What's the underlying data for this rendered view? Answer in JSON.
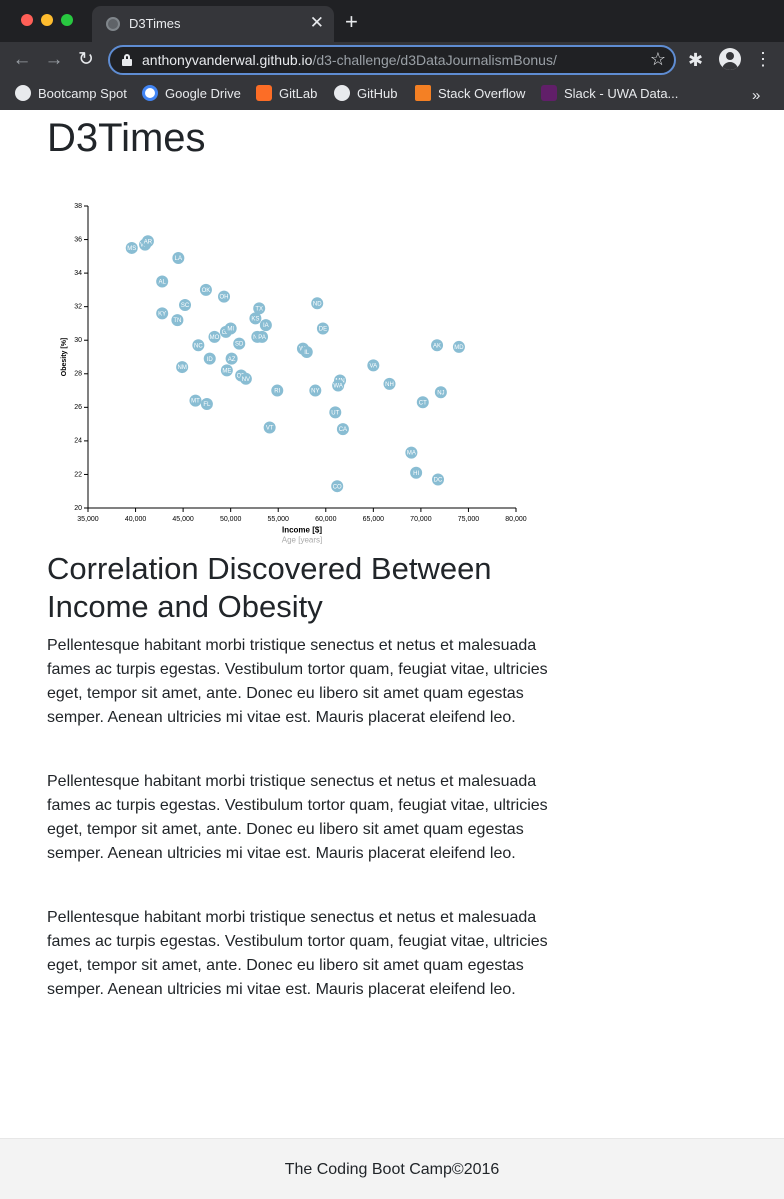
{
  "browser": {
    "tab_title": "D3Times",
    "tab_close": "✕",
    "new_tab": "+",
    "url_domain": "anthonyvanderwal.github.io",
    "url_path": "/d3-challenge/d3DataJournalismBonus/",
    "bookmarks": [
      {
        "label": "Bootcamp Spot",
        "icon": "globe-icon",
        "color": "#e8eaed"
      },
      {
        "label": "Google Drive",
        "icon": "google-icon",
        "color": "#4285f4"
      },
      {
        "label": "GitLab",
        "icon": "gitlab-icon",
        "color": "#fc6d26"
      },
      {
        "label": "GitHub",
        "icon": "github-icon",
        "color": "#e8eaed"
      },
      {
        "label": "Stack Overflow",
        "icon": "stackoverflow-icon",
        "color": "#f48024"
      },
      {
        "label": "Slack - UWA Data...",
        "icon": "slack-icon",
        "color": "#611f69"
      }
    ],
    "more": "»"
  },
  "page": {
    "title": "D3Times",
    "article_heading": "Correlation Discovered Between Income and Obesity",
    "paragraphs": [
      "Pellentesque habitant morbi tristique senectus et netus et malesuada fames ac turpis egestas. Vestibulum tortor quam, feugiat vitae, ultricies eget, tempor sit amet, ante. Donec eu libero sit amet quam egestas semper. Aenean ultricies mi vitae est. Mauris placerat eleifend leo.",
      "Pellentesque habitant morbi tristique senectus et netus et malesuada fames ac turpis egestas. Vestibulum tortor quam, feugiat vitae, ultricies eget, tempor sit amet, ante. Donec eu libero sit amet quam egestas semper. Aenean ultricies mi vitae est. Mauris placerat eleifend leo.",
      "Pellentesque habitant morbi tristique senectus et netus et malesuada fames ac turpis egestas. Vestibulum tortor quam, feugiat vitae, ultricies eget, tempor sit amet, ante. Donec eu libero sit amet quam egestas semper. Aenean ultricies mi vitae est. Mauris placerat eleifend leo."
    ],
    "footer": "The Coding Boot Camp©2016"
  },
  "colors": {
    "marker": "#89bdd3",
    "marker_text": "#ffffff",
    "active_axis_label": "#000000",
    "inactive_axis_label": "#a9a9a9"
  },
  "chart_data": {
    "type": "scatter",
    "xlabel": "Income [$]",
    "xlabel_alt": "Age [years]",
    "ylabel": "Obesity [%]",
    "xlim": [
      35000,
      80000
    ],
    "ylim": [
      20,
      38
    ],
    "x_ticks": [
      "35,000",
      "40,000",
      "45,000",
      "50,000",
      "55,000",
      "60,000",
      "65,000",
      "70,000",
      "75,000",
      "80,000"
    ],
    "y_ticks": [
      "20",
      "22",
      "24",
      "26",
      "28",
      "30",
      "32",
      "34",
      "36",
      "38"
    ],
    "points": [
      {
        "abbr": "MS",
        "x": 39600,
        "y": 35.5
      },
      {
        "abbr": "WV",
        "x": 41000,
        "y": 35.7
      },
      {
        "abbr": "AR",
        "x": 41300,
        "y": 35.9
      },
      {
        "abbr": "LA",
        "x": 44500,
        "y": 34.9
      },
      {
        "abbr": "AL",
        "x": 42800,
        "y": 33.5
      },
      {
        "abbr": "OK",
        "x": 47400,
        "y": 33.0
      },
      {
        "abbr": "OH",
        "x": 49300,
        "y": 32.6
      },
      {
        "abbr": "SC",
        "x": 45200,
        "y": 32.1
      },
      {
        "abbr": "KY",
        "x": 42800,
        "y": 31.6
      },
      {
        "abbr": "TN",
        "x": 44400,
        "y": 31.2
      },
      {
        "abbr": "TX",
        "x": 53000,
        "y": 31.9
      },
      {
        "abbr": "ND",
        "x": 59100,
        "y": 32.2
      },
      {
        "abbr": "KS",
        "x": 52600,
        "y": 31.3
      },
      {
        "abbr": "IA",
        "x": 53700,
        "y": 30.9
      },
      {
        "abbr": "DE",
        "x": 59700,
        "y": 30.7
      },
      {
        "abbr": "GA",
        "x": 49500,
        "y": 30.5
      },
      {
        "abbr": "MI",
        "x": 50000,
        "y": 30.7
      },
      {
        "abbr": "MO",
        "x": 48300,
        "y": 30.2
      },
      {
        "abbr": "NE",
        "x": 52800,
        "y": 30.2
      },
      {
        "abbr": "PA",
        "x": 53300,
        "y": 30.2
      },
      {
        "abbr": "NC",
        "x": 46600,
        "y": 29.7
      },
      {
        "abbr": "SD",
        "x": 50900,
        "y": 29.8
      },
      {
        "abbr": "WI",
        "x": 57600,
        "y": 29.5
      },
      {
        "abbr": "IL",
        "x": 58000,
        "y": 29.3
      },
      {
        "abbr": "AK",
        "x": 71700,
        "y": 29.7
      },
      {
        "abbr": "MD",
        "x": 74000,
        "y": 29.6
      },
      {
        "abbr": "ID",
        "x": 47800,
        "y": 28.9
      },
      {
        "abbr": "AZ",
        "x": 50100,
        "y": 28.9
      },
      {
        "abbr": "NM",
        "x": 44900,
        "y": 28.4
      },
      {
        "abbr": "ME",
        "x": 49600,
        "y": 28.2
      },
      {
        "abbr": "VA",
        "x": 65000,
        "y": 28.5
      },
      {
        "abbr": "OR",
        "x": 51100,
        "y": 27.9
      },
      {
        "abbr": "NV",
        "x": 51600,
        "y": 27.7
      },
      {
        "abbr": "MN",
        "x": 61500,
        "y": 27.6
      },
      {
        "abbr": "WA",
        "x": 61300,
        "y": 27.3
      },
      {
        "abbr": "NH",
        "x": 66700,
        "y": 27.4
      },
      {
        "abbr": "RI",
        "x": 54900,
        "y": 27.0
      },
      {
        "abbr": "NY",
        "x": 58900,
        "y": 27.0
      },
      {
        "abbr": "NJ",
        "x": 72100,
        "y": 26.9
      },
      {
        "abbr": "MT",
        "x": 46300,
        "y": 26.4
      },
      {
        "abbr": "FL",
        "x": 47500,
        "y": 26.2
      },
      {
        "abbr": "CT",
        "x": 70200,
        "y": 26.3
      },
      {
        "abbr": "UT",
        "x": 61000,
        "y": 25.7
      },
      {
        "abbr": "VT",
        "x": 54100,
        "y": 24.8
      },
      {
        "abbr": "CA",
        "x": 61800,
        "y": 24.7
      },
      {
        "abbr": "MA",
        "x": 69000,
        "y": 23.3
      },
      {
        "abbr": "HI",
        "x": 69500,
        "y": 22.1
      },
      {
        "abbr": "DC",
        "x": 71800,
        "y": 21.7
      },
      {
        "abbr": "CO",
        "x": 61200,
        "y": 21.3
      }
    ]
  }
}
